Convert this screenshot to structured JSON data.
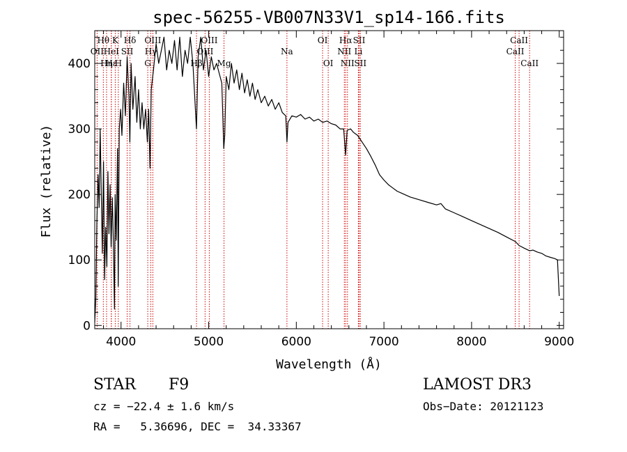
{
  "chart_data": {
    "type": "line",
    "title": "spec-56255-VB007N33V1_sp14-166.fits",
    "xlabel": "Wavelength (Å)",
    "ylabel": "Flux (relative)",
    "xlim": [
      3700,
      9050
    ],
    "ylim": [
      -5,
      450
    ],
    "xticks": [
      4000,
      5000,
      6000,
      7000,
      8000,
      9000
    ],
    "yticks": [
      0,
      100,
      200,
      300,
      400
    ],
    "series": [
      {
        "name": "flux",
        "points": [
          [
            3700,
            5
          ],
          [
            3712,
            40
          ],
          [
            3725,
            160
          ],
          [
            3738,
            230
          ],
          [
            3750,
            180
          ],
          [
            3762,
            300
          ],
          [
            3775,
            200
          ],
          [
            3787,
            110
          ],
          [
            3800,
            250
          ],
          [
            3812,
            70
          ],
          [
            3825,
            150
          ],
          [
            3838,
            90
          ],
          [
            3850,
            235
          ],
          [
            3862,
            140
          ],
          [
            3875,
            215
          ],
          [
            3887,
            120
          ],
          [
            3900,
            195
          ],
          [
            3912,
            130
          ],
          [
            3925,
            25
          ],
          [
            3933,
            200
          ],
          [
            3945,
            130
          ],
          [
            3960,
            270
          ],
          [
            3968,
            60
          ],
          [
            3980,
            300
          ],
          [
            3995,
            330
          ],
          [
            4010,
            290
          ],
          [
            4030,
            370
          ],
          [
            4050,
            320
          ],
          [
            4070,
            410
          ],
          [
            4090,
            350
          ],
          [
            4101,
            280
          ],
          [
            4115,
            400
          ],
          [
            4135,
            330
          ],
          [
            4160,
            380
          ],
          [
            4180,
            310
          ],
          [
            4200,
            360
          ],
          [
            4220,
            300
          ],
          [
            4240,
            340
          ],
          [
            4260,
            300
          ],
          [
            4280,
            330
          ],
          [
            4300,
            280
          ],
          [
            4315,
            330
          ],
          [
            4330,
            240
          ],
          [
            4345,
            360
          ],
          [
            4370,
            390
          ],
          [
            4400,
            430
          ],
          [
            4430,
            400
          ],
          [
            4460,
            420
          ],
          [
            4490,
            440
          ],
          [
            4520,
            390
          ],
          [
            4550,
            420
          ],
          [
            4580,
            400
          ],
          [
            4610,
            435
          ],
          [
            4640,
            390
          ],
          [
            4670,
            440
          ],
          [
            4700,
            380
          ],
          [
            4730,
            420
          ],
          [
            4760,
            400
          ],
          [
            4790,
            440
          ],
          [
            4820,
            400
          ],
          [
            4861,
            300
          ],
          [
            4880,
            410
          ],
          [
            4910,
            440
          ],
          [
            4940,
            390
          ],
          [
            4970,
            420
          ],
          [
            5000,
            380
          ],
          [
            5030,
            410
          ],
          [
            5060,
            390
          ],
          [
            5090,
            400
          ],
          [
            5120,
            385
          ],
          [
            5150,
            370
          ],
          [
            5172,
            270
          ],
          [
            5183,
            290
          ],
          [
            5200,
            380
          ],
          [
            5230,
            360
          ],
          [
            5260,
            400
          ],
          [
            5290,
            370
          ],
          [
            5320,
            390
          ],
          [
            5350,
            360
          ],
          [
            5380,
            385
          ],
          [
            5410,
            355
          ],
          [
            5440,
            375
          ],
          [
            5470,
            350
          ],
          [
            5500,
            370
          ],
          [
            5530,
            345
          ],
          [
            5560,
            360
          ],
          [
            5600,
            340
          ],
          [
            5640,
            350
          ],
          [
            5680,
            335
          ],
          [
            5720,
            345
          ],
          [
            5760,
            330
          ],
          [
            5800,
            340
          ],
          [
            5840,
            325
          ],
          [
            5880,
            320
          ],
          [
            5893,
            280
          ],
          [
            5905,
            310
          ],
          [
            5950,
            320
          ],
          [
            6000,
            318
          ],
          [
            6050,
            322
          ],
          [
            6100,
            315
          ],
          [
            6150,
            318
          ],
          [
            6200,
            312
          ],
          [
            6250,
            315
          ],
          [
            6300,
            310
          ],
          [
            6350,
            312
          ],
          [
            6400,
            308
          ],
          [
            6450,
            306
          ],
          [
            6500,
            300
          ],
          [
            6540,
            300
          ],
          [
            6563,
            260
          ],
          [
            6580,
            298
          ],
          [
            6620,
            300
          ],
          [
            6650,
            295
          ],
          [
            6700,
            290
          ],
          [
            6750,
            280
          ],
          [
            6800,
            270
          ],
          [
            6850,
            258
          ],
          [
            6900,
            245
          ],
          [
            6950,
            230
          ],
          [
            7000,
            222
          ],
          [
            7050,
            215
          ],
          [
            7100,
            210
          ],
          [
            7150,
            205
          ],
          [
            7200,
            202
          ],
          [
            7300,
            196
          ],
          [
            7400,
            192
          ],
          [
            7500,
            188
          ],
          [
            7600,
            184
          ],
          [
            7650,
            186
          ],
          [
            7700,
            178
          ],
          [
            7800,
            172
          ],
          [
            7900,
            166
          ],
          [
            8000,
            160
          ],
          [
            8100,
            154
          ],
          [
            8200,
            148
          ],
          [
            8300,
            142
          ],
          [
            8400,
            135
          ],
          [
            8500,
            128
          ],
          [
            8542,
            122
          ],
          [
            8600,
            118
          ],
          [
            8662,
            114
          ],
          [
            8700,
            115
          ],
          [
            8750,
            112
          ],
          [
            8800,
            110
          ],
          [
            8850,
            106
          ],
          [
            8900,
            104
          ],
          [
            8950,
            102
          ],
          [
            8980,
            100
          ],
          [
            9000,
            45
          ]
        ]
      }
    ],
    "spectral_lines": [
      {
        "label": "Hθ",
        "wavelength": 3798,
        "row": 1
      },
      {
        "label": "OII",
        "wavelength": 3727,
        "row": 2
      },
      {
        "label": "Hη",
        "wavelength": 3835,
        "row": 3
      },
      {
        "label": "HeI",
        "wavelength": 3889,
        "row": 2
      },
      {
        "label": "Hε",
        "wavelength": 3889,
        "row": 3
      },
      {
        "label": "K",
        "wavelength": 3934,
        "row": 1
      },
      {
        "label": "SII",
        "wavelength": 4070,
        "row": 2
      },
      {
        "label": "H",
        "wavelength": 3969,
        "row": 3
      },
      {
        "label": "Hδ",
        "wavelength": 4102,
        "row": 1
      },
      {
        "label": "OIII",
        "wavelength": 4363,
        "row": 1
      },
      {
        "label": "Hγ",
        "wavelength": 4340,
        "row": 2
      },
      {
        "label": "G",
        "wavelength": 4305,
        "row": 3
      },
      {
        "label": "OIII",
        "wavelength": 5007,
        "row": 1
      },
      {
        "label": "OIII",
        "wavelength": 4959,
        "row": 2
      },
      {
        "label": "Hβ",
        "wavelength": 4861,
        "row": 3
      },
      {
        "label": "Mg",
        "wavelength": 5175,
        "row": 3
      },
      {
        "label": "Na",
        "wavelength": 5893,
        "row": 2
      },
      {
        "label": "OI",
        "wavelength": 6300,
        "row": 1
      },
      {
        "label": "OI",
        "wavelength": 6364,
        "row": 3
      },
      {
        "label": "Hα",
        "wavelength": 6563,
        "row": 1
      },
      {
        "label": "SII",
        "wavelength": 6717,
        "row": 1
      },
      {
        "label": "NII",
        "wavelength": 6548,
        "row": 2
      },
      {
        "label": "Li",
        "wavelength": 6708,
        "row": 2
      },
      {
        "label": "NII",
        "wavelength": 6584,
        "row": 3
      },
      {
        "label": "SII",
        "wavelength": 6731,
        "row": 3
      },
      {
        "label": "CaII",
        "wavelength": 8542,
        "row": 1
      },
      {
        "label": "CaII",
        "wavelength": 8498,
        "row": 2
      },
      {
        "label": "CaII",
        "wavelength": 8662,
        "row": 3
      }
    ],
    "line_color": "#cc0000"
  },
  "info": {
    "class_label": "STAR",
    "subclass": "F9",
    "cz": "cz = −22.4 ± 1.6 km/s",
    "radec": "RA =   5.36696, DEC =  34.33367",
    "survey": "LAMOST DR3",
    "obs_date": "Obs−Date: 20121123"
  }
}
